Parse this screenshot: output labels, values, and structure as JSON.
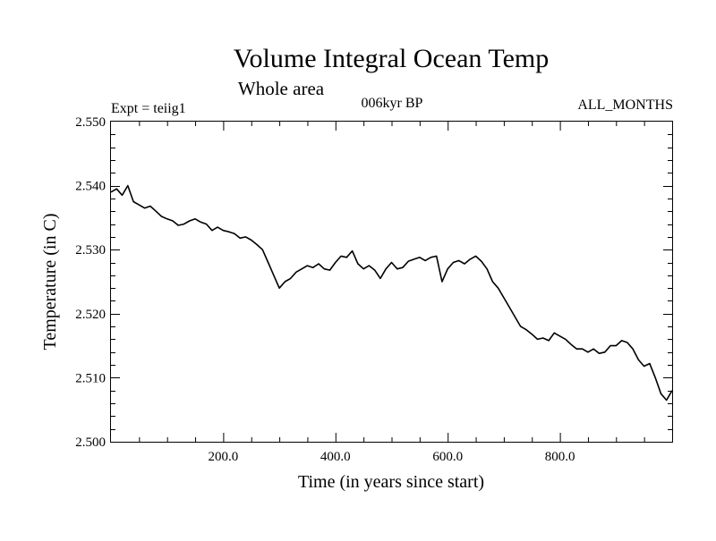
{
  "chart_data": {
    "type": "line",
    "title": "Volume Integral Ocean Temp",
    "subtitle": "Whole area",
    "annotations": {
      "experiment": "Expt = teiig1",
      "period": "006kyr BP",
      "months": "ALL_MONTHS"
    },
    "xlabel": "Time (in years since start)",
    "ylabel": "Temperature (in C)",
    "xlim": [
      0,
      1000
    ],
    "ylim": [
      2.5,
      2.55
    ],
    "x_ticks": [
      {
        "value": 200,
        "label": "200.0"
      },
      {
        "value": 400,
        "label": "400.0"
      },
      {
        "value": 600,
        "label": "600.0"
      },
      {
        "value": 800,
        "label": "800.0"
      }
    ],
    "y_ticks": [
      {
        "value": 2.5,
        "label": "2.500"
      },
      {
        "value": 2.51,
        "label": "2.510"
      },
      {
        "value": 2.52,
        "label": "2.520"
      },
      {
        "value": 2.53,
        "label": "2.530"
      },
      {
        "value": 2.54,
        "label": "2.540"
      },
      {
        "value": 2.55,
        "label": "2.550"
      }
    ],
    "grid": false,
    "line_color": "#000000",
    "series": [
      {
        "x": [
          0,
          10,
          20,
          30,
          40,
          50,
          60,
          70,
          80,
          90,
          100,
          110,
          120,
          130,
          140,
          150,
          160,
          170,
          180,
          190,
          200,
          210,
          220,
          230,
          240,
          250,
          260,
          270,
          280,
          290,
          300,
          310,
          320,
          330,
          340,
          350,
          360,
          370,
          380,
          390,
          400,
          410,
          420,
          430,
          440,
          450,
          460,
          470,
          480,
          490,
          500,
          510,
          520,
          530,
          540,
          550,
          560,
          570,
          580,
          590,
          600,
          610,
          620,
          630,
          640,
          650,
          660,
          670,
          680,
          690,
          700,
          710,
          720,
          730,
          740,
          750,
          760,
          770,
          780,
          790,
          800,
          810,
          820,
          830,
          840,
          850,
          860,
          870,
          880,
          890,
          900,
          910,
          920,
          930,
          940,
          950,
          960,
          970,
          980,
          990,
          1000
        ],
        "y": [
          2.539,
          2.5395,
          2.5385,
          2.54,
          2.5375,
          2.537,
          2.5365,
          2.5368,
          2.536,
          2.5352,
          2.5348,
          2.5345,
          2.5338,
          2.534,
          2.5345,
          2.5348,
          2.5343,
          2.534,
          2.533,
          2.5335,
          2.533,
          2.5328,
          2.5325,
          2.5318,
          2.532,
          2.5315,
          2.5308,
          2.53,
          2.528,
          2.526,
          2.524,
          2.525,
          2.5255,
          2.5265,
          2.527,
          2.5275,
          2.5272,
          2.5278,
          2.527,
          2.5268,
          2.528,
          2.529,
          2.5288,
          2.5298,
          2.5278,
          2.527,
          2.5275,
          2.5268,
          2.5255,
          2.527,
          2.528,
          2.527,
          2.5272,
          2.5282,
          2.5285,
          2.5288,
          2.5283,
          2.5288,
          2.529,
          2.525,
          2.527,
          2.528,
          2.5283,
          2.5278,
          2.5285,
          2.529,
          2.5282,
          2.527,
          2.525,
          2.524,
          2.5225,
          2.521,
          2.5195,
          2.518,
          2.5175,
          2.5168,
          2.516,
          2.5162,
          2.5158,
          2.517,
          2.5165,
          2.516,
          2.5152,
          2.5145,
          2.5145,
          2.514,
          2.5145,
          2.5138,
          2.514,
          2.515,
          2.515,
          2.5158,
          2.5155,
          2.5145,
          2.5128,
          2.5118,
          2.5122,
          2.51,
          2.5075,
          2.5065,
          2.508
        ]
      }
    ]
  }
}
